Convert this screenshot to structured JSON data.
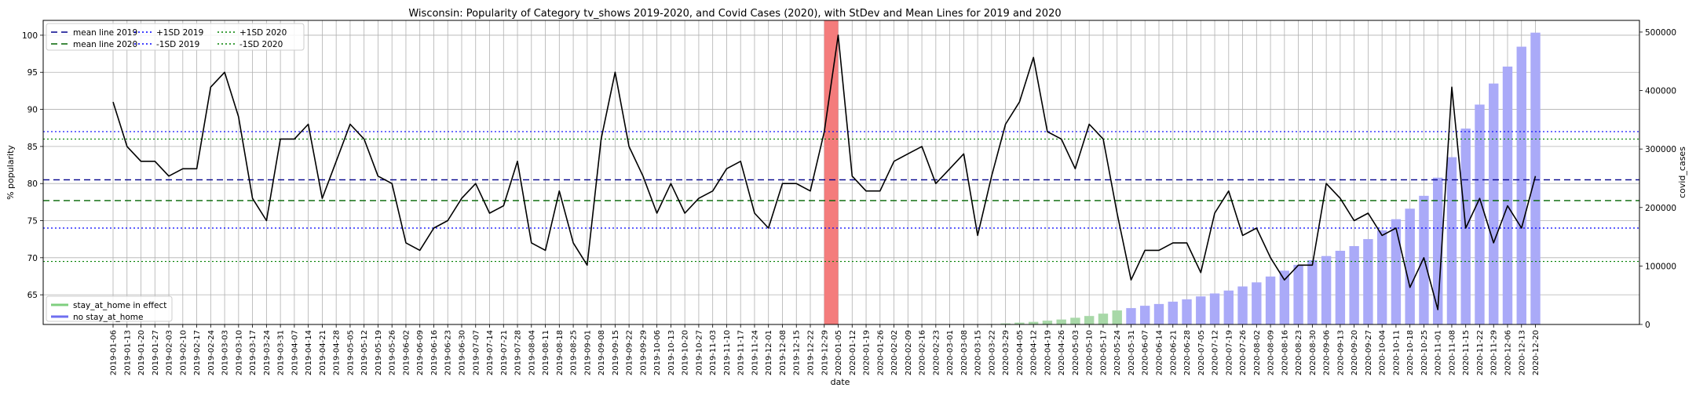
{
  "chart_data": {
    "type": "line",
    "title": "Wisconsin: Popularity of Category tv_shows 2019-2020, and Covid Cases (2020), with StDev and Mean Lines for 2019 and 2020",
    "xlabel": "date",
    "ylabel": "% popularity",
    "y2label": "covid_cases",
    "ylim": [
      61,
      102
    ],
    "y2lim": [
      0,
      520000
    ],
    "yticks": [
      65,
      70,
      75,
      80,
      85,
      90,
      95,
      100
    ],
    "y2ticks": [
      0,
      100000,
      200000,
      300000,
      400000,
      500000
    ],
    "grid": true,
    "x": [
      "2019-01-06",
      "2019-01-13",
      "2019-01-20",
      "2019-01-27",
      "2019-02-03",
      "2019-02-10",
      "2019-02-17",
      "2019-02-24",
      "2019-03-03",
      "2019-03-10",
      "2019-03-17",
      "2019-03-24",
      "2019-03-31",
      "2019-04-07",
      "2019-04-14",
      "2019-04-21",
      "2019-04-28",
      "2019-05-05",
      "2019-05-12",
      "2019-05-19",
      "2019-05-26",
      "2019-06-02",
      "2019-06-09",
      "2019-06-16",
      "2019-06-23",
      "2019-06-30",
      "2019-07-07",
      "2019-07-14",
      "2019-07-21",
      "2019-07-28",
      "2019-08-04",
      "2019-08-11",
      "2019-08-18",
      "2019-08-25",
      "2019-09-01",
      "2019-09-08",
      "2019-09-15",
      "2019-09-22",
      "2019-09-29",
      "2019-10-06",
      "2019-10-13",
      "2019-10-20",
      "2019-10-27",
      "2019-11-03",
      "2019-11-10",
      "2019-11-17",
      "2019-11-24",
      "2019-12-01",
      "2019-12-08",
      "2019-12-15",
      "2019-12-22",
      "2019-12-29",
      "2020-01-05",
      "2020-01-12",
      "2020-01-19",
      "2020-01-26",
      "2020-02-02",
      "2020-02-09",
      "2020-02-16",
      "2020-02-23",
      "2020-03-01",
      "2020-03-08",
      "2020-03-15",
      "2020-03-22",
      "2020-03-29",
      "2020-04-05",
      "2020-04-12",
      "2020-04-19",
      "2020-04-26",
      "2020-05-03",
      "2020-05-10",
      "2020-05-17",
      "2020-05-24",
      "2020-05-31",
      "2020-06-07",
      "2020-06-14",
      "2020-06-21",
      "2020-06-28",
      "2020-07-05",
      "2020-07-12",
      "2020-07-19",
      "2020-07-26",
      "2020-08-02",
      "2020-08-09",
      "2020-08-16",
      "2020-08-23",
      "2020-08-30",
      "2020-09-06",
      "2020-09-13",
      "2020-09-20",
      "2020-09-27",
      "2020-10-04",
      "2020-10-11",
      "2020-10-18",
      "2020-10-25",
      "2020-11-01",
      "2020-11-08",
      "2020-11-15",
      "2020-11-22",
      "2020-11-29",
      "2020-12-06",
      "2020-12-13",
      "2020-12-20"
    ],
    "series": [
      {
        "name": "% popularity",
        "color": "#000000",
        "values": [
          91,
          85,
          83,
          83,
          81,
          82,
          82,
          93,
          95,
          89,
          78,
          75,
          86,
          86,
          88,
          78,
          83,
          88,
          86,
          81,
          80,
          72,
          71,
          74,
          75,
          78,
          80,
          76,
          77,
          83,
          72,
          71,
          79,
          72,
          69,
          86,
          95,
          85,
          81,
          76,
          80,
          76,
          78,
          79,
          82,
          83,
          76,
          74,
          80,
          80,
          79,
          87,
          100,
          81,
          79,
          79,
          83,
          84,
          85,
          80,
          82,
          84,
          73,
          81,
          88,
          91,
          97,
          87,
          86,
          82,
          88,
          86,
          76,
          67,
          71,
          71,
          72,
          72,
          68,
          76,
          79,
          73,
          74,
          70,
          67,
          69,
          69,
          80,
          78,
          75,
          76,
          73,
          74,
          66,
          70,
          63,
          93,
          74,
          78,
          72,
          77,
          74,
          81
        ]
      }
    ],
    "covid_cases": {
      "name": "covid_cases",
      "start_index": 63,
      "values": [
        800,
        1800,
        3200,
        4500,
        6500,
        8500,
        11500,
        14500,
        18500,
        24000,
        28000,
        32000,
        35000,
        39000,
        43000,
        48000,
        53000,
        58000,
        65000,
        72000,
        82000,
        92000,
        102000,
        110000,
        117000,
        126000,
        134000,
        146000,
        161000,
        180000,
        198000,
        220000,
        251000,
        286000,
        335000,
        376000,
        412000,
        441000,
        475000,
        499000
      ],
      "mode_colors": [
        "#a8d8a8",
        "#aaaaf8"
      ],
      "mode_split_index": 73
    },
    "reference_lines": {
      "mean_2019": 80.5,
      "mean_2020": 77.7,
      "plus_sd_2019": 87,
      "minus_sd_2019": 74,
      "plus_sd_2020": 86,
      "minus_sd_2020": 69.5
    },
    "highlight": {
      "start": "2019-12-29",
      "end": "2020-01-05",
      "color": "#f47c7c"
    },
    "legend_top": [
      {
        "label": "mean line 2019",
        "color": "#00008b",
        "dash": "8,5"
      },
      {
        "label": "mean line 2020",
        "color": "#006400",
        "dash": "8,5"
      },
      {
        "label": "+1SD 2019",
        "color": "#0000ff",
        "dash": "2,3"
      },
      {
        "label": "-1SD 2019",
        "color": "#0000ff",
        "dash": "2,3"
      },
      {
        "label": "+1SD 2020",
        "color": "#008000",
        "dash": "2,3"
      },
      {
        "label": "-1SD 2020",
        "color": "#008000",
        "dash": "2,3"
      }
    ],
    "legend_bottom": [
      {
        "label": "stay_at_home in effect",
        "color": "#7fcf7f"
      },
      {
        "label": "no stay_at_home",
        "color": "#6f6ff0"
      }
    ],
    "legend_placement": [
      "upper-left",
      "lower-left"
    ]
  }
}
